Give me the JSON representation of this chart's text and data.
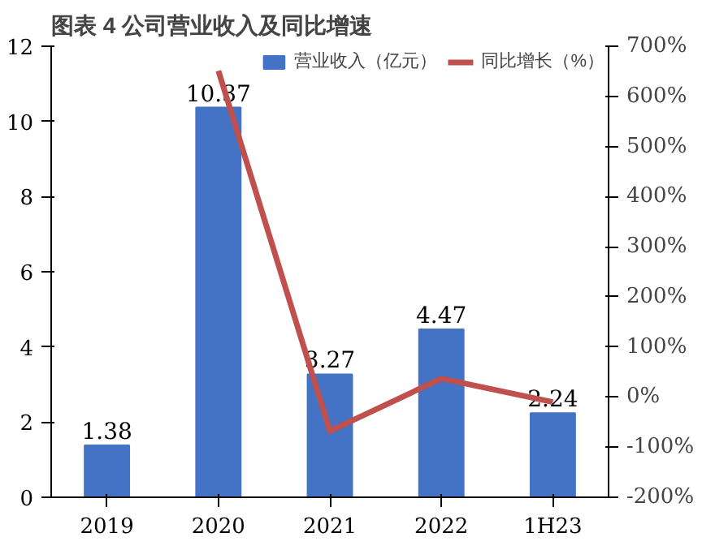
{
  "chart_data": {
    "type": "bar",
    "title": "图表 4 公司营业收入及同比增速",
    "categories": [
      "2019",
      "2020",
      "2021",
      "2022",
      "1H23"
    ],
    "series": [
      {
        "name": "营业收入（亿元）",
        "color": "#4472c4",
        "values": [
          1.38,
          10.37,
          3.27,
          4.47,
          2.24
        ],
        "value_labels": [
          "1.38",
          "10.37",
          "3.27",
          "4.47",
          "2.24"
        ]
      },
      {
        "name": "同比增长（%）",
        "type": "line",
        "axis": "y2",
        "color": "#c0504d",
        "values": [
          null,
          651,
          -68,
          37,
          -10
        ]
      }
    ],
    "ylim": [
      0,
      12
    ],
    "yticks": [
      0,
      2,
      4,
      6,
      8,
      10,
      12
    ],
    "y2lim": [
      -200,
      700
    ],
    "y2ticks": [
      {
        "value": -200,
        "label": "-200%"
      },
      {
        "value": -100,
        "label": "-100%"
      },
      {
        "value": 0,
        "label": "0%"
      },
      {
        "value": 100,
        "label": "100%"
      },
      {
        "value": 200,
        "label": "200%"
      },
      {
        "value": 300,
        "label": "300%"
      },
      {
        "value": 400,
        "label": "400%"
      },
      {
        "value": 500,
        "label": "500%"
      },
      {
        "value": 600,
        "label": "600%"
      },
      {
        "value": 700,
        "label": "700%"
      }
    ],
    "grid": false,
    "legend": "top",
    "marker": "none",
    "line_style": "solid"
  }
}
